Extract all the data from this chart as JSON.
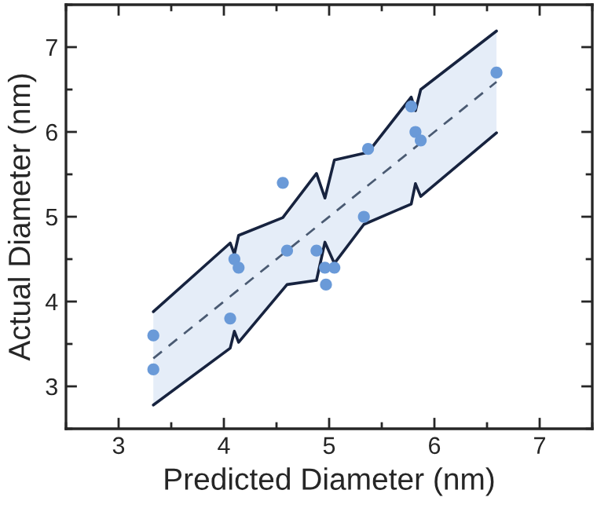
{
  "chart_data": {
    "type": "scatter",
    "xlabel": "Predicted Diameter (nm)",
    "ylabel": "Actual Diameter (nm)",
    "xlim": [
      2.5,
      7.5
    ],
    "ylim": [
      2.5,
      7.5
    ],
    "xticks": [
      {
        "value": 2.5,
        "label": null
      },
      3,
      {
        "value": 3.5,
        "label": null
      },
      4,
      {
        "value": 4.5,
        "label": null
      },
      5,
      {
        "value": 5.5,
        "label": null
      },
      6,
      {
        "value": 6.5,
        "label": null
      },
      7,
      {
        "value": 7.5,
        "label": null
      }
    ],
    "yticks": [
      {
        "value": 2.5,
        "label": null
      },
      3,
      {
        "value": 3.5,
        "label": null
      },
      4,
      {
        "value": 4.5,
        "label": null
      },
      5,
      {
        "value": 5.5,
        "label": null
      },
      6,
      {
        "value": 6.5,
        "label": null
      },
      7,
      {
        "value": 7.5,
        "label": null
      }
    ],
    "grid": false,
    "legend": false,
    "series": [
      {
        "type": "line",
        "line_style": "dashed",
        "marker": "none",
        "color": "#4a5a72",
        "x": [
          3.33,
          4.06,
          4.1,
          4.14,
          4.56,
          4.6,
          4.88,
          4.96,
          5.05,
          5.33,
          5.37,
          5.78,
          5.82,
          5.87,
          6.59
        ],
        "values": [
          3.33,
          4.06,
          4.1,
          4.14,
          4.56,
          4.6,
          4.88,
          4.96,
          5.05,
          5.33,
          5.37,
          5.78,
          5.82,
          5.87,
          6.59
        ],
        "lower": [
          2.78,
          3.45,
          3.65,
          3.52,
          4.16,
          4.2,
          4.25,
          4.7,
          4.45,
          4.91,
          4.93,
          5.15,
          5.39,
          5.24,
          5.99
        ],
        "upper": [
          3.88,
          4.69,
          4.56,
          4.78,
          4.99,
          5.01,
          5.51,
          5.22,
          5.67,
          5.75,
          5.76,
          6.41,
          6.25,
          6.5,
          7.19
        ]
      },
      {
        "type": "line",
        "line_style": "solid",
        "marker": "none",
        "color": "#17233f",
        "x": [
          3.33,
          4.06,
          4.1,
          4.14,
          4.6,
          4.88,
          4.96,
          5.05,
          5.33,
          5.78,
          5.82,
          5.87,
          6.59
        ],
        "values": [
          2.78,
          3.45,
          3.65,
          3.52,
          4.2,
          4.25,
          4.7,
          4.45,
          4.91,
          5.15,
          5.39,
          5.24,
          5.99
        ]
      },
      {
        "type": "line",
        "line_style": "solid",
        "marker": "none",
        "color": "#17233f",
        "x": [
          3.33,
          4.06,
          4.1,
          4.14,
          4.56,
          4.88,
          4.96,
          5.05,
          5.37,
          5.78,
          5.82,
          5.87,
          6.59
        ],
        "values": [
          3.88,
          4.69,
          4.56,
          4.78,
          4.99,
          5.51,
          5.22,
          5.67,
          5.76,
          6.41,
          6.25,
          6.5,
          7.19
        ]
      },
      {
        "marker": "circle",
        "color": "#6a9ad8",
        "x": [
          3.33,
          3.33,
          4.06,
          4.1,
          4.14,
          4.6,
          4.88,
          4.96,
          5.05,
          4.97,
          4.56,
          5.33,
          5.37,
          5.78,
          5.82,
          5.87,
          6.59
        ],
        "values": [
          3.6,
          3.2,
          3.8,
          4.5,
          4.4,
          4.6,
          4.6,
          4.4,
          4.4,
          4.2,
          5.4,
          5.0,
          5.8,
          6.3,
          6.0,
          5.9,
          6.7
        ]
      }
    ]
  }
}
